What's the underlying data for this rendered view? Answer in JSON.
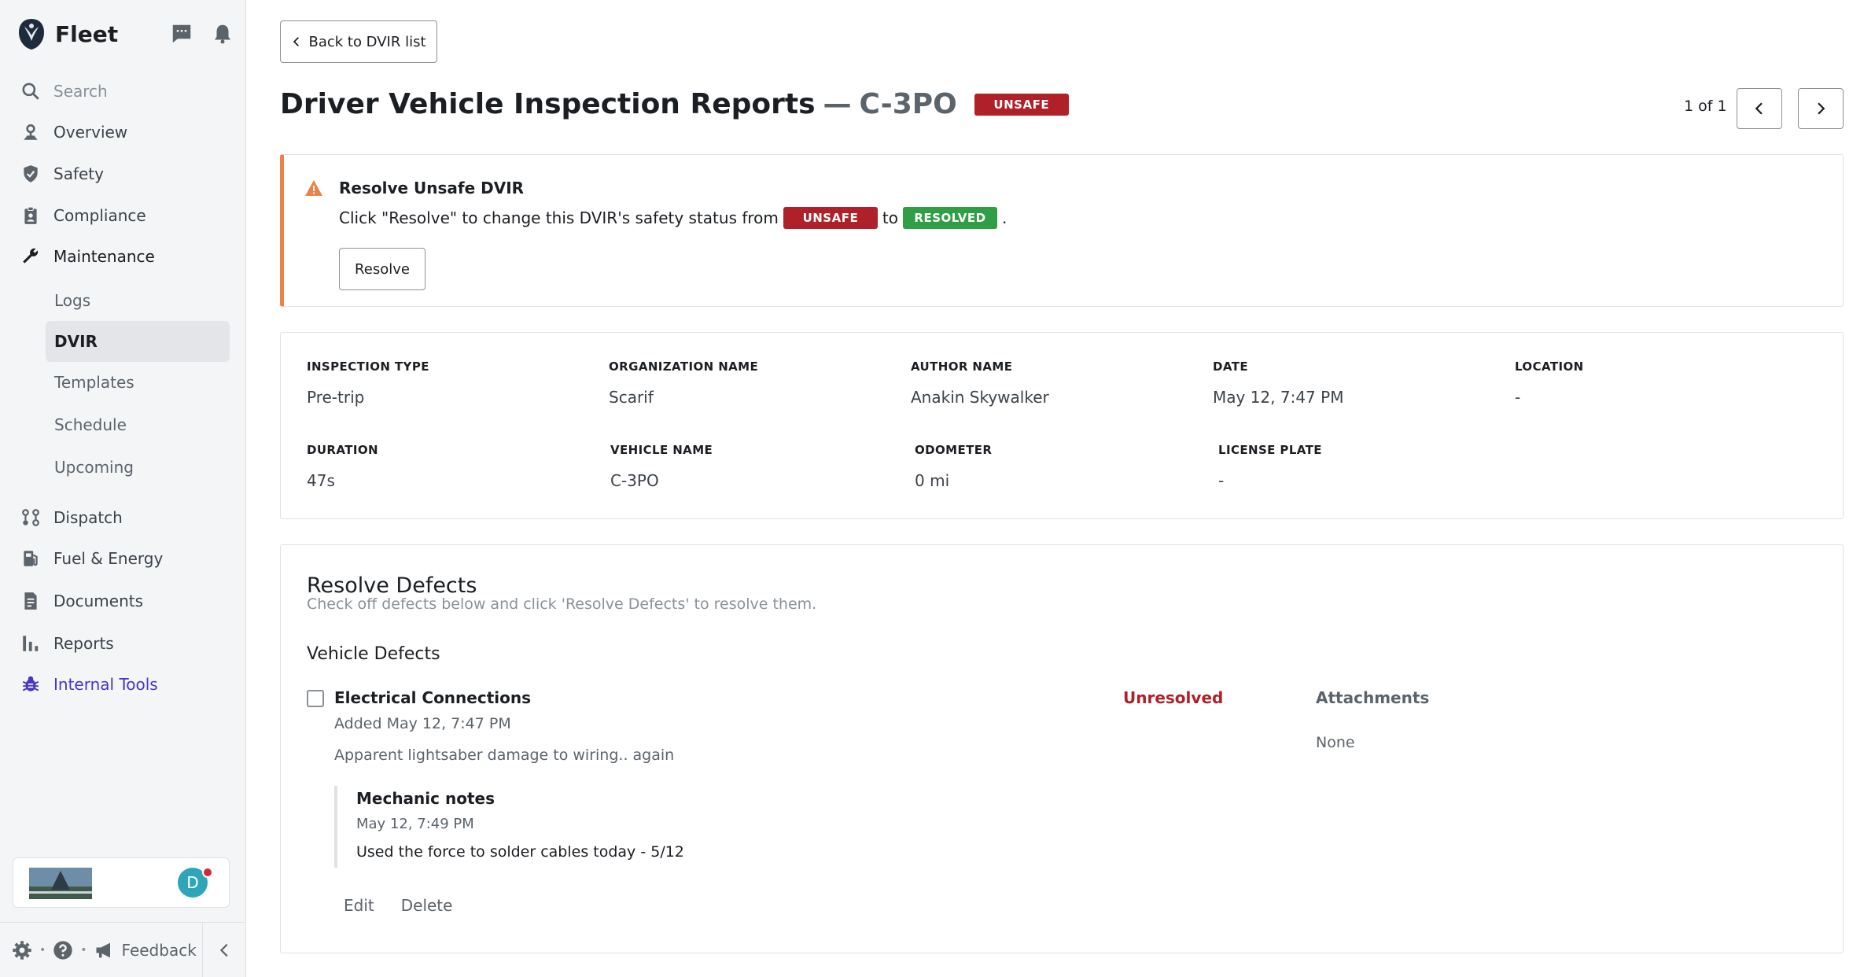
{
  "app": {
    "name": "Fleet",
    "brand_color": "#1b1e22",
    "accent_color": "#4b33c4"
  },
  "sidebar": {
    "search_label": "Search",
    "items": [
      {
        "label": "Overview",
        "icon": "overview-icon"
      },
      {
        "label": "Safety",
        "icon": "shield-icon"
      },
      {
        "label": "Compliance",
        "icon": "clipboard-icon"
      },
      {
        "label": "Maintenance",
        "icon": "wrench-icon"
      },
      {
        "label": "Dispatch",
        "icon": "route-icon"
      },
      {
        "label": "Fuel & Energy",
        "icon": "fuel-icon"
      },
      {
        "label": "Documents",
        "icon": "document-icon"
      },
      {
        "label": "Reports",
        "icon": "bar-chart-icon"
      },
      {
        "label": "Internal Tools",
        "icon": "bug-icon"
      }
    ],
    "maintenance_sub": [
      "Logs",
      "DVIR",
      "Templates",
      "Schedule",
      "Upcoming"
    ],
    "active_sub": "DVIR",
    "avatar_initial": "D",
    "feedback_label": "Feedback"
  },
  "header": {
    "back_label": "Back to DVIR list",
    "title": "Driver Vehicle Inspection Reports",
    "separator": "—",
    "vehicle": "C-3PO",
    "status_badge": "UNSAFE",
    "pager": "1 of 1"
  },
  "alert": {
    "title": "Resolve Unsafe DVIR",
    "text_before": "Click \"Resolve\" to change this DVIR's safety status from",
    "from_badge": "UNSAFE",
    "text_mid": "to",
    "to_badge": "RESOLVED",
    "text_after": ".",
    "button": "Resolve",
    "accent": "#e9834a"
  },
  "info": {
    "inspection_type": {
      "label": "INSPECTION TYPE",
      "value": "Pre-trip"
    },
    "organization_name": {
      "label": "ORGANIZATION NAME",
      "value": "Scarif"
    },
    "author_name": {
      "label": "AUTHOR NAME",
      "value": "Anakin Skywalker"
    },
    "date": {
      "label": "DATE",
      "value": "May 12, 7:47 PM"
    },
    "location": {
      "label": "LOCATION",
      "value": "-"
    },
    "duration": {
      "label": "DURATION",
      "value": "47s"
    },
    "vehicle_name": {
      "label": "VEHICLE NAME",
      "value": "C-3PO"
    },
    "odometer": {
      "label": "ODOMETER",
      "value": "0 mi"
    },
    "license_plate": {
      "label": "LICENSE PLATE",
      "value": "-"
    }
  },
  "defects": {
    "title": "Resolve Defects",
    "subtitle": "Check off defects below and click 'Resolve Defects' to resolve them.",
    "section": "Vehicle Defects",
    "item": {
      "name": "Electrical Connections",
      "added": "Added May 12, 7:47 PM",
      "description": "Apparent lightsaber damage to wiring.. again",
      "status": "Unresolved",
      "attachments_label": "Attachments",
      "attachments_value": "None",
      "notes_title": "Mechanic notes",
      "notes_date": "May 12, 7:49 PM",
      "notes_text": "Used the force to solder cables today - 5/12",
      "edit_label": "Edit",
      "delete_label": "Delete"
    }
  }
}
